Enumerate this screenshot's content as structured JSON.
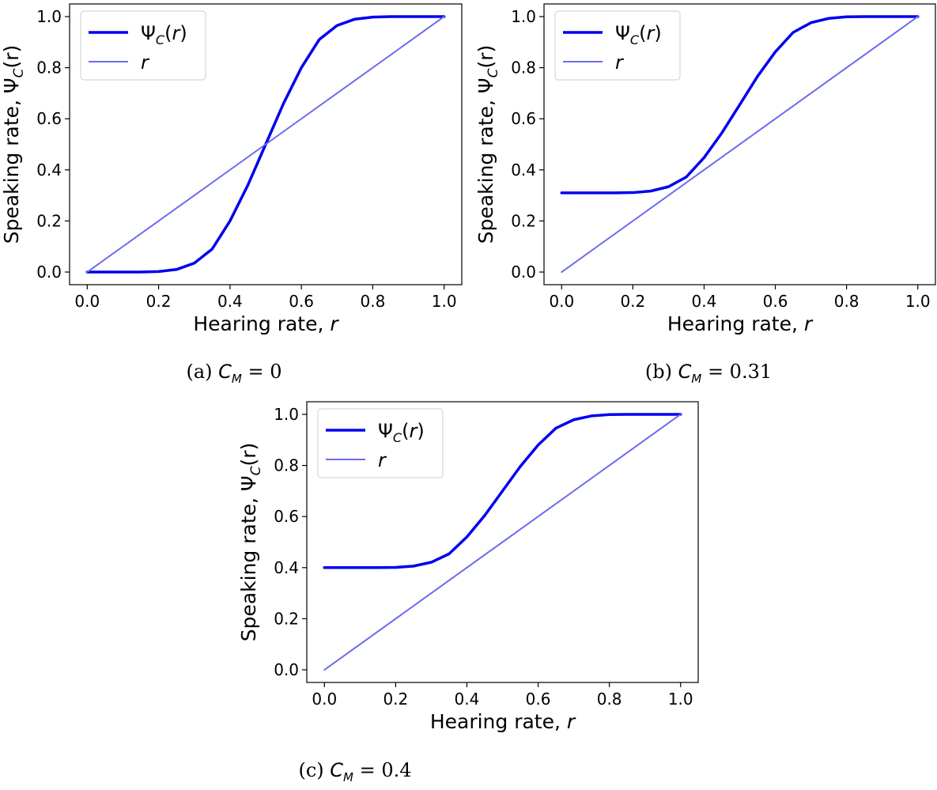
{
  "chart_data": [
    {
      "type": "line",
      "xlabel_prefix": "Hearing rate, ",
      "xlabel_var": "r",
      "ylabel_prefix": "Speaking rate, ",
      "ylabel_var": "Ψ",
      "ylabel_sub": "C",
      "ylabel_suffix": "(r)",
      "xlim": [
        0.0,
        1.0
      ],
      "ylim": [
        0.0,
        1.0
      ],
      "xticks": [
        "0.0",
        "0.2",
        "0.4",
        "0.6",
        "0.8",
        "1.0"
      ],
      "yticks": [
        "0.0",
        "0.2",
        "0.4",
        "0.6",
        "0.8",
        "1.0"
      ],
      "legend_position": "top-left",
      "grid": false,
      "series": [
        {
          "name": "Ψ_C(r)",
          "color": "#0000ee",
          "x": [
            0.0,
            0.05,
            0.1,
            0.15,
            0.2,
            0.25,
            0.3,
            0.35,
            0.4,
            0.45,
            0.5,
            0.55,
            0.6,
            0.65,
            0.7,
            0.75,
            0.8,
            0.85,
            0.9,
            0.95,
            1.0
          ],
          "y": [
            0.0,
            0.0,
            0.0,
            0.0,
            0.002,
            0.01,
            0.035,
            0.09,
            0.2,
            0.34,
            0.5,
            0.66,
            0.8,
            0.91,
            0.965,
            0.99,
            0.998,
            1.0,
            1.0,
            1.0,
            1.0
          ]
        },
        {
          "name": "r",
          "color": "#6b6bf0",
          "x": [
            0.0,
            1.0
          ],
          "y": [
            0.0,
            1.0
          ]
        }
      ],
      "caption": {
        "letter": "(a)",
        "value": "0"
      }
    },
    {
      "type": "line",
      "xlabel_prefix": "Hearing rate, ",
      "xlabel_var": "r",
      "ylabel_prefix": "Speaking rate, ",
      "ylabel_var": "Ψ",
      "ylabel_sub": "C",
      "ylabel_suffix": "(r)",
      "xlim": [
        0.0,
        1.0
      ],
      "ylim": [
        0.0,
        1.0
      ],
      "xticks": [
        "0.0",
        "0.2",
        "0.4",
        "0.6",
        "0.8",
        "1.0"
      ],
      "yticks": [
        "0.0",
        "0.2",
        "0.4",
        "0.6",
        "0.8",
        "1.0"
      ],
      "legend_position": "top-left",
      "grid": false,
      "series": [
        {
          "name": "Ψ_C(r)",
          "color": "#0000ee",
          "x": [
            0.0,
            0.05,
            0.1,
            0.15,
            0.2,
            0.25,
            0.3,
            0.35,
            0.4,
            0.45,
            0.5,
            0.55,
            0.6,
            0.65,
            0.7,
            0.75,
            0.8,
            0.85,
            0.9,
            0.95,
            1.0
          ],
          "y": [
            0.31,
            0.31,
            0.31,
            0.31,
            0.311,
            0.317,
            0.334,
            0.372,
            0.448,
            0.545,
            0.655,
            0.766,
            0.862,
            0.938,
            0.976,
            0.993,
            0.999,
            1.0,
            1.0,
            1.0,
            1.0
          ]
        },
        {
          "name": "r",
          "color": "#6b6bf0",
          "x": [
            0.0,
            1.0
          ],
          "y": [
            0.0,
            1.0
          ]
        }
      ],
      "caption": {
        "letter": "(b)",
        "value": "0.31"
      }
    },
    {
      "type": "line",
      "xlabel_prefix": "Hearing rate, ",
      "xlabel_var": "r",
      "ylabel_prefix": "Speaking rate, ",
      "ylabel_var": "Ψ",
      "ylabel_sub": "C",
      "ylabel_suffix": "(r)",
      "xlim": [
        0.0,
        1.0
      ],
      "ylim": [
        0.0,
        1.0
      ],
      "xticks": [
        "0.0",
        "0.2",
        "0.4",
        "0.6",
        "0.8",
        "1.0"
      ],
      "yticks": [
        "0.0",
        "0.2",
        "0.4",
        "0.6",
        "0.8",
        "1.0"
      ],
      "legend_position": "top-left",
      "grid": false,
      "series": [
        {
          "name": "Ψ_C(r)",
          "color": "#0000ee",
          "x": [
            0.0,
            0.05,
            0.1,
            0.15,
            0.2,
            0.25,
            0.3,
            0.35,
            0.4,
            0.45,
            0.5,
            0.55,
            0.6,
            0.65,
            0.7,
            0.75,
            0.8,
            0.85,
            0.9,
            0.95,
            1.0
          ],
          "y": [
            0.4,
            0.4,
            0.4,
            0.4,
            0.401,
            0.406,
            0.421,
            0.454,
            0.52,
            0.604,
            0.7,
            0.796,
            0.88,
            0.946,
            0.979,
            0.994,
            0.999,
            1.0,
            1.0,
            1.0,
            1.0
          ]
        },
        {
          "name": "r",
          "color": "#6b6bf0",
          "x": [
            0.0,
            1.0
          ],
          "y": [
            0.0,
            1.0
          ]
        }
      ],
      "caption": {
        "letter": "(c)",
        "value": "0.4"
      }
    }
  ]
}
